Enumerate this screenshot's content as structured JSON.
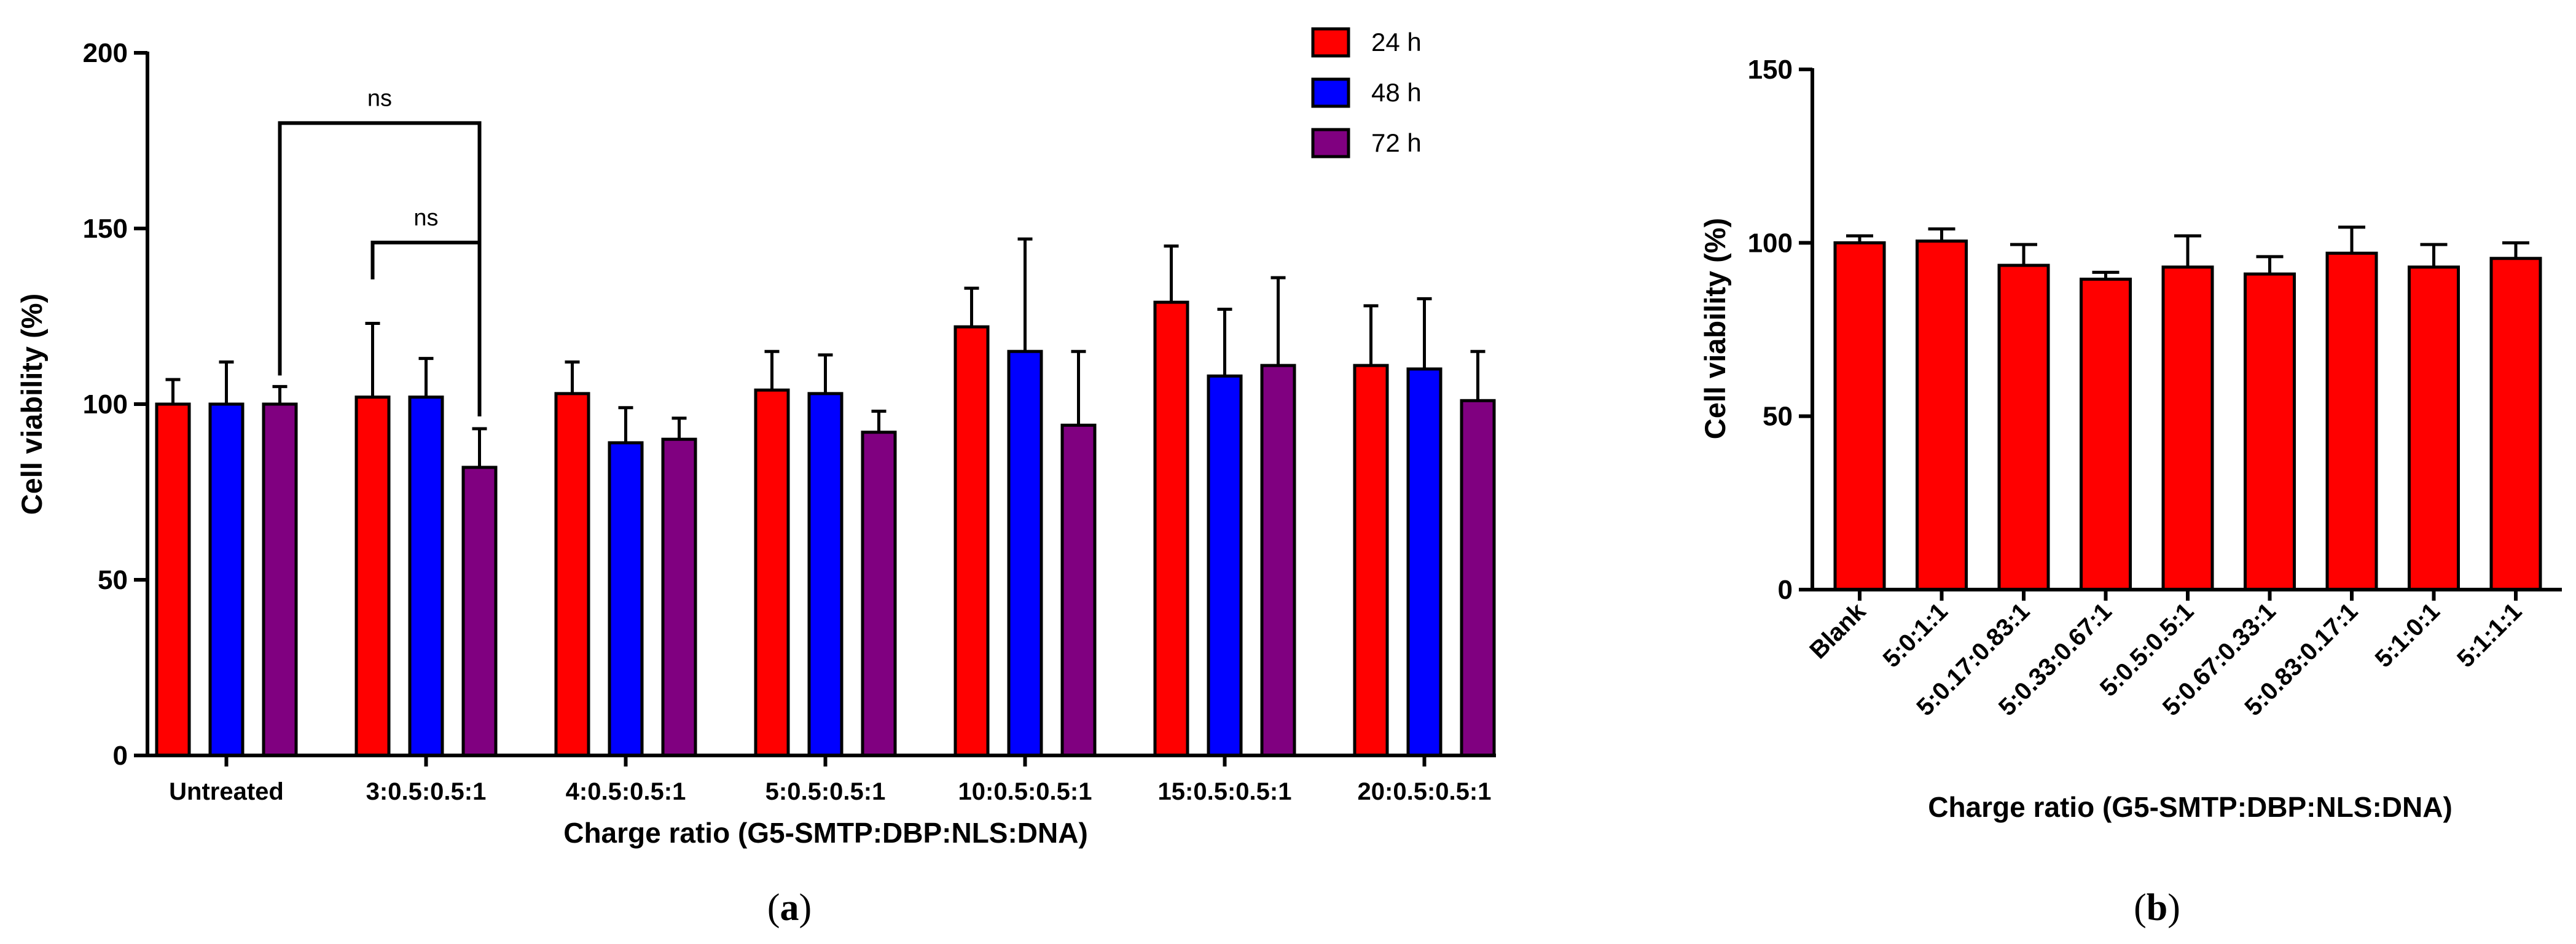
{
  "colors": {
    "c24": "#ff0000",
    "c48": "#0000ff",
    "c72": "#800080",
    "axis": "#000000",
    "bar_b": "#ff0000"
  },
  "panel_a": {
    "caption": "(a)",
    "caption_letter": "a",
    "chart_data": {
      "type": "bar",
      "title": "",
      "xlabel": "Charge ratio (G5-SMTP:DBP:NLS:DNA)",
      "ylabel": "Cell viability (%)",
      "ylim": [
        0,
        200
      ],
      "yticks": [
        0,
        50,
        100,
        150,
        200
      ],
      "grid": false,
      "legend_position": "top-right",
      "categories": [
        "Untreated",
        "3:0.5:0.5:1",
        "4:0.5:0.5:1",
        "5:0.5:0.5:1",
        "10:0.5:0.5:1",
        "15:0.5:0.5:1",
        "20:0.5:0.5:1"
      ],
      "series": [
        {
          "name": "24 h",
          "values": [
            100,
            102,
            103,
            104,
            122,
            129,
            111
          ],
          "errors": [
            7,
            21,
            9,
            11,
            11,
            16,
            17
          ]
        },
        {
          "name": "48 h",
          "values": [
            100,
            102,
            89,
            103,
            115,
            108,
            110
          ],
          "errors": [
            12,
            11,
            10,
            11,
            32,
            19,
            20
          ]
        },
        {
          "name": "72 h",
          "values": [
            100,
            82,
            90,
            92,
            94,
            111,
            101
          ],
          "errors": [
            5,
            11,
            6,
            6,
            21,
            25,
            14
          ]
        }
      ],
      "annotations": [
        {
          "label": "ns",
          "from_group": 0,
          "from_series": 2,
          "to_group": 1,
          "to_series": 2,
          "level": 180
        },
        {
          "label": "ns",
          "from_group": 1,
          "from_series": 0,
          "to_group": 1,
          "to_series": 2,
          "level": 146
        }
      ]
    }
  },
  "panel_b": {
    "caption": "(b)",
    "caption_letter": "b",
    "chart_data": {
      "type": "bar",
      "title": "",
      "xlabel": "Charge ratio (G5-SMTP:DBP:NLS:DNA)",
      "ylabel": "Cell viability (%)",
      "ylim": [
        0,
        150
      ],
      "yticks": [
        0,
        50,
        100,
        150
      ],
      "grid": false,
      "categories": [
        "Blank",
        "5:0:1:1",
        "5:0.17:0.83:1",
        "5:0.33:0.67:1",
        "5:0.5:0.5:1",
        "5:0.67:0.33:1",
        "5:0.83:0.17:1",
        "5:1:0:1",
        "5:1:1:1"
      ],
      "values": [
        100,
        100.5,
        93.5,
        89.5,
        93,
        91,
        97,
        93,
        95.5
      ],
      "errors": [
        2,
        3.5,
        6,
        2,
        9,
        5,
        7.5,
        6.5,
        4.5
      ]
    }
  }
}
